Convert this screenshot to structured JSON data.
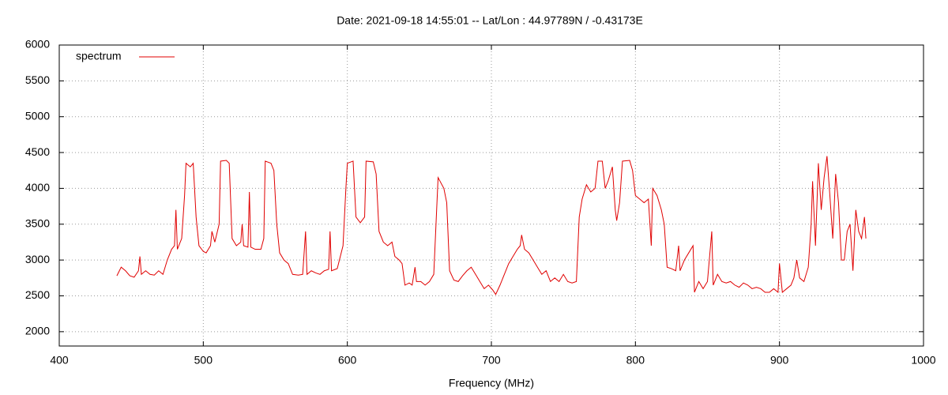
{
  "chart_data": {
    "type": "line",
    "title": "Date: 2021-09-18 14:55:01  --  Lat/Lon : 44.97789N / -0.43173E",
    "x_label": "Frequency (MHz)",
    "xlim": [
      400,
      1000
    ],
    "xticks": [
      400,
      500,
      600,
      700,
      800,
      900,
      1000
    ],
    "ylim": [
      1800,
      6000
    ],
    "yticks": [
      2000,
      2500,
      3000,
      3500,
      4000,
      4500,
      5000,
      5500,
      6000
    ],
    "grid": true,
    "legend": "upper left",
    "x": [
      440,
      443,
      446,
      449,
      452,
      455,
      456,
      457,
      460,
      463,
      466,
      469,
      472,
      475,
      478,
      480,
      481,
      482,
      485,
      487,
      488,
      491,
      493,
      495,
      497,
      500,
      502,
      505,
      506,
      508,
      511,
      512,
      516,
      518,
      520,
      523,
      526,
      527,
      528,
      531,
      532,
      533,
      536,
      540,
      542,
      543,
      547,
      549,
      551,
      553,
      556,
      559,
      562,
      566,
      569,
      571,
      572,
      575,
      578,
      581,
      584,
      587,
      588,
      589,
      593,
      597,
      599,
      600,
      604,
      606,
      609,
      612,
      613,
      618,
      620,
      622,
      625,
      628,
      631,
      633,
      636,
      638,
      640,
      643,
      645,
      647,
      648,
      651,
      654,
      657,
      660,
      662,
      663,
      667,
      669,
      671,
      674,
      677,
      680,
      683,
      686,
      689,
      692,
      695,
      698,
      701,
      703,
      706,
      709,
      712,
      715,
      718,
      720,
      721,
      723,
      726,
      729,
      732,
      735,
      738,
      741,
      744,
      747,
      750,
      753,
      756,
      759,
      761,
      763,
      766,
      769,
      772,
      774,
      777,
      779,
      781,
      784,
      786,
      787,
      789,
      791,
      796,
      798,
      800,
      803,
      806,
      809,
      811,
      812,
      815,
      818,
      820,
      822,
      825,
      828,
      830,
      831,
      834,
      837,
      840,
      841,
      844,
      847,
      850,
      853,
      854,
      857,
      860,
      863,
      866,
      869,
      872,
      875,
      878,
      881,
      884,
      887,
      890,
      893,
      896,
      899,
      900,
      902,
      905,
      908,
      910,
      912,
      914,
      917,
      920,
      922,
      923,
      925,
      927,
      929,
      931,
      933,
      935,
      937,
      939,
      941,
      943,
      945,
      947,
      949,
      951,
      953,
      955,
      957,
      959,
      960
    ],
    "series": [
      {
        "name": "spectrum",
        "color": "#e00000",
        "values": [
          2780,
          2900,
          2850,
          2780,
          2760,
          2850,
          3050,
          2800,
          2850,
          2800,
          2790,
          2850,
          2800,
          3000,
          3150,
          3200,
          3700,
          3150,
          3300,
          3900,
          4350,
          4300,
          4350,
          3600,
          3200,
          3120,
          3100,
          3200,
          3400,
          3250,
          3500,
          4380,
          4390,
          4350,
          3300,
          3200,
          3250,
          3500,
          3200,
          3180,
          3950,
          3180,
          3150,
          3150,
          3300,
          4380,
          4350,
          4250,
          3500,
          3100,
          3000,
          2950,
          2800,
          2790,
          2800,
          3400,
          2800,
          2850,
          2820,
          2800,
          2850,
          2870,
          3400,
          2850,
          2880,
          3200,
          4000,
          4350,
          4380,
          3600,
          3520,
          3600,
          4380,
          4370,
          4200,
          3400,
          3250,
          3200,
          3250,
          3050,
          3000,
          2950,
          2650,
          2680,
          2650,
          2900,
          2700,
          2700,
          2650,
          2700,
          2800,
          3700,
          4150,
          4000,
          3800,
          2850,
          2720,
          2700,
          2780,
          2850,
          2900,
          2800,
          2700,
          2600,
          2650,
          2580,
          2520,
          2650,
          2800,
          2950,
          3050,
          3150,
          3200,
          3350,
          3150,
          3100,
          3000,
          2900,
          2800,
          2850,
          2700,
          2750,
          2700,
          2800,
          2700,
          2680,
          2700,
          3600,
          3850,
          4050,
          3950,
          4000,
          4380,
          4380,
          4000,
          4100,
          4300,
          3700,
          3550,
          3800,
          4380,
          4390,
          4250,
          3900,
          3850,
          3800,
          3850,
          3200,
          4000,
          3900,
          3700,
          3500,
          2900,
          2880,
          2850,
          3200,
          2850,
          3000,
          3100,
          3200,
          2550,
          2700,
          2600,
          2700,
          3400,
          2650,
          2800,
          2700,
          2680,
          2700,
          2650,
          2620,
          2680,
          2650,
          2600,
          2620,
          2600,
          2550,
          2550,
          2600,
          2550,
          2950,
          2550,
          2600,
          2650,
          2750,
          3000,
          2750,
          2700,
          2900,
          3500,
          4100,
          3200,
          4350,
          3700,
          4150,
          4450,
          3900,
          3300,
          4200,
          3800,
          3000,
          3000,
          3400,
          3500,
          2850,
          3700,
          3400,
          3300,
          3600,
          3300
        ]
      }
    ]
  }
}
